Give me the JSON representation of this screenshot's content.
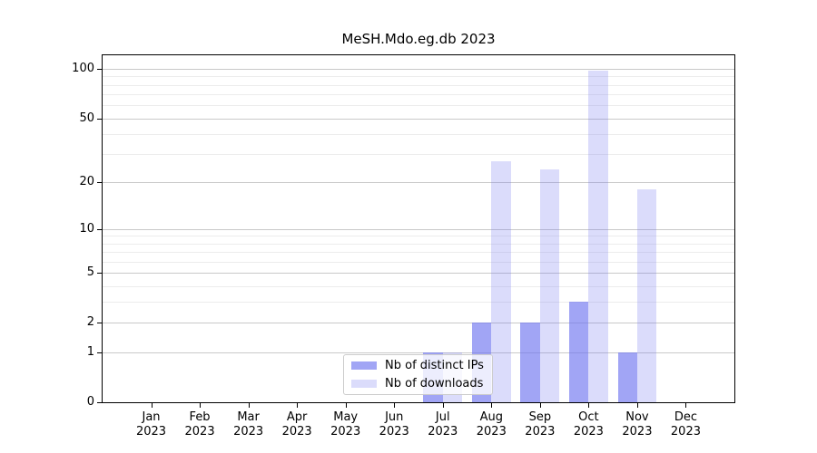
{
  "figure": {
    "title": "MeSH.Mdo.eg.db 2023"
  },
  "chart_data": {
    "type": "bar",
    "title": "MeSH.Mdo.eg.db 2023",
    "categories": [
      "Jan",
      "Feb",
      "Mar",
      "Apr",
      "May",
      "Jun",
      "Jul",
      "Aug",
      "Sep",
      "Oct",
      "Nov",
      "Dec"
    ],
    "category_year": "2023",
    "series": [
      {
        "name": "Nb of distinct IPs",
        "values": [
          0,
          0,
          0,
          0,
          0,
          0,
          1,
          2,
          2,
          3,
          1,
          0
        ],
        "color": "rgba(110,116,240,0.65)"
      },
      {
        "name": "Nb of downloads",
        "values": [
          0,
          0,
          0,
          0,
          0,
          0,
          1,
          27,
          24,
          98,
          18,
          0
        ],
        "color": "rgba(110,116,240,0.25)"
      }
    ],
    "yscale": "log1p",
    "ylim": [
      0,
      121
    ],
    "yticks": [
      0,
      1,
      2,
      5,
      10,
      20,
      50,
      100
    ],
    "ytick_labels": [
      "0",
      "1",
      "2",
      "5",
      "10",
      "20",
      "50",
      "100"
    ],
    "minor_yticks": [
      3,
      4,
      6,
      7,
      8,
      9,
      30,
      40,
      60,
      70,
      80,
      90
    ],
    "grid": true,
    "legend_position": "lower center",
    "colors": {
      "bar_base": "#6e74f0",
      "grid_major": "#c9c9c9",
      "grid_minor": "#ececec",
      "axis": "#000000",
      "legend_border": "#cccccc"
    }
  }
}
